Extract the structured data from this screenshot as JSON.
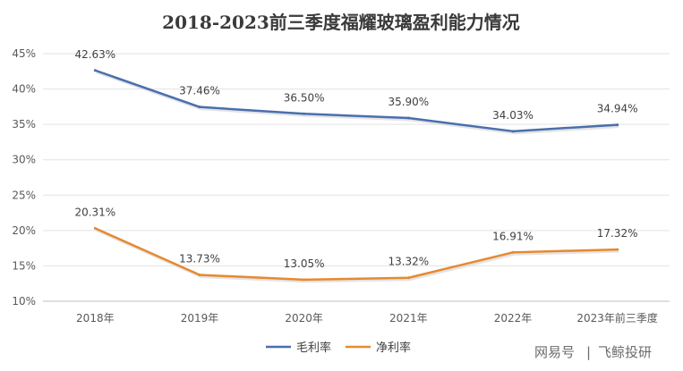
{
  "chart_data": {
    "type": "line",
    "title": "2018-2023前三季度福耀玻璃盈利能力情况",
    "categories": [
      "2018年",
      "2019年",
      "2020年",
      "2021年",
      "2022年",
      "2023年前三季度"
    ],
    "series": [
      {
        "name": "毛利率",
        "color": "#4a6fae",
        "values": [
          42.63,
          37.46,
          36.5,
          35.9,
          34.03,
          34.94
        ],
        "labels": [
          "42.63%",
          "37.46%",
          "36.50%",
          "35.90%",
          "34.03%",
          "34.94%"
        ]
      },
      {
        "name": "净利率",
        "color": "#e6892f",
        "values": [
          20.31,
          13.73,
          13.05,
          13.32,
          16.91,
          17.32
        ],
        "labels": [
          "20.31%",
          "13.73%",
          "13.05%",
          "13.32%",
          "16.91%",
          "17.32%"
        ]
      }
    ],
    "ylim": [
      10,
      45
    ],
    "yticks": [
      10,
      15,
      20,
      25,
      30,
      35,
      40,
      45
    ],
    "ytick_labels": [
      "10%",
      "15%",
      "20%",
      "25%",
      "30%",
      "35%",
      "40%",
      "45%"
    ],
    "grid": true,
    "legend_position": "bottom-center"
  },
  "watermark": {
    "brand": "网易号",
    "separator": "|",
    "author": "飞鲸投研"
  }
}
